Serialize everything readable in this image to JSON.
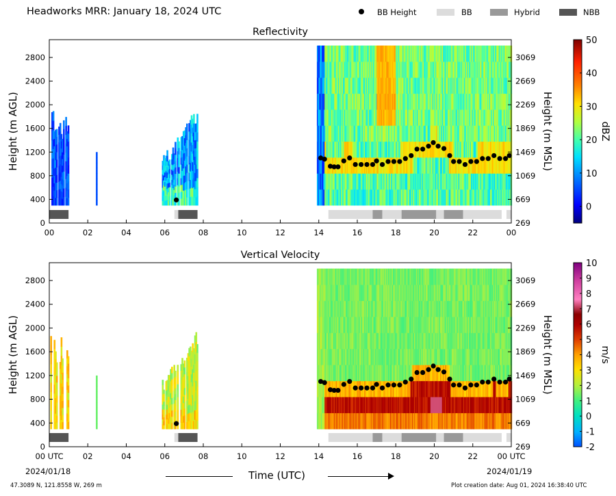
{
  "header": {
    "title": "Headworks MRR:  January 18, 2024 UTC",
    "legend": [
      {
        "label": "BB Height",
        "icon": "black-dot-icon",
        "color": "#000000"
      },
      {
        "label": "BB",
        "icon": "light-gray-swatch-icon",
        "color": "#dcdcdc"
      },
      {
        "label": "Hybrid",
        "icon": "mid-gray-swatch-icon",
        "color": "#999999"
      },
      {
        "label": "NBB",
        "icon": "dark-gray-swatch-icon",
        "color": "#555555"
      }
    ]
  },
  "footer": {
    "location": "47.3089 N, 121.8558 W, 269 m",
    "creation": "Plot creation date: Aug 01, 2024 16:38:40 UTC",
    "date_left": "2024/01/18",
    "date_right": "2024/01/19",
    "xlabel": "Time (UTC)"
  },
  "chart_data": [
    {
      "type": "heatmap",
      "title": "Reflectivity",
      "xlabel": "",
      "ylabel": "Height (m AGL)",
      "ylabel_right": "Height (m MSL)",
      "x_ticks": [
        "00",
        "02",
        "04",
        "06",
        "08",
        "10",
        "12",
        "14",
        "16",
        "18",
        "20",
        "22",
        "00"
      ],
      "xlim": [
        0,
        24
      ],
      "ylim": [
        0,
        3100
      ],
      "y_ticks": [
        0,
        400,
        800,
        1200,
        1600,
        2000,
        2400,
        2800
      ],
      "y_ticks_right": [
        269,
        669,
        1069,
        1469,
        1869,
        2269,
        2669,
        3069
      ],
      "colorbar": {
        "label": "dBZ",
        "min": -5,
        "max": 50,
        "ticks": [
          0,
          10,
          20,
          30,
          40,
          50
        ],
        "colors": [
          "#00007f",
          "#0000ff",
          "#0080ff",
          "#00e0ff",
          "#40ffb0",
          "#b0ff40",
          "#ffe000",
          "#ff8000",
          "#ff2000",
          "#7f0000"
        ]
      },
      "bb_height": {
        "time": [
          6.6,
          14.1,
          14.3,
          14.6,
          14.8,
          15.0,
          15.3,
          15.6,
          15.9,
          16.2,
          16.5,
          16.8,
          17.0,
          17.3,
          17.6,
          17.9,
          18.2,
          18.5,
          18.8,
          19.1,
          19.4,
          19.7,
          19.95,
          20.2,
          20.5,
          20.8,
          21.0,
          21.3,
          21.6,
          21.9,
          22.2,
          22.5,
          22.8,
          23.1,
          23.4,
          23.7,
          23.9
        ],
        "height": [
          390,
          1100,
          1080,
          960,
          950,
          950,
          1050,
          1100,
          990,
          990,
          990,
          990,
          1050,
          990,
          1040,
          1040,
          1040,
          1090,
          1140,
          1250,
          1250,
          1300,
          1360,
          1300,
          1260,
          1140,
          1040,
          1040,
          990,
          1040,
          1040,
          1090,
          1090,
          1140,
          1090,
          1090,
          1140
        ]
      },
      "precip_type_bar": [
        {
          "start": 0.0,
          "end": 1.0,
          "type": "NBB"
        },
        {
          "start": 6.5,
          "end": 6.7,
          "type": "BB"
        },
        {
          "start": 6.7,
          "end": 7.7,
          "type": "NBB"
        },
        {
          "start": 14.5,
          "end": 16.8,
          "type": "BB"
        },
        {
          "start": 16.8,
          "end": 17.3,
          "type": "Hybrid"
        },
        {
          "start": 17.3,
          "end": 18.3,
          "type": "BB"
        },
        {
          "start": 18.3,
          "end": 20.1,
          "type": "Hybrid"
        },
        {
          "start": 20.1,
          "end": 20.5,
          "type": "BB"
        },
        {
          "start": 20.5,
          "end": 21.5,
          "type": "Hybrid"
        },
        {
          "start": 21.5,
          "end": 23.5,
          "type": "BB"
        },
        {
          "start": 23.75,
          "end": 24.0,
          "type": "BB"
        }
      ]
    },
    {
      "type": "heatmap",
      "title": "Vertical Velocity",
      "xlabel": "Time (UTC)",
      "ylabel": "Height (m AGL)",
      "ylabel_right": "Height (m MSL)",
      "x_ticks": [
        "00 UTC",
        "02",
        "04",
        "06",
        "08",
        "10",
        "12",
        "14",
        "16",
        "18",
        "20",
        "22",
        "00 UTC"
      ],
      "xlim": [
        0,
        24
      ],
      "ylim": [
        0,
        3100
      ],
      "y_ticks": [
        0,
        400,
        800,
        1200,
        1600,
        2000,
        2400,
        2800
      ],
      "y_ticks_right": [
        269,
        669,
        1069,
        1469,
        1869,
        2269,
        2669,
        3069
      ],
      "colorbar": {
        "label": "m/s",
        "min": -2,
        "max": 10,
        "ticks": [
          -2,
          -1,
          0,
          1,
          2,
          3,
          4,
          5,
          6,
          7,
          8,
          9,
          10
        ],
        "colors": [
          "#0050ff",
          "#00b0ff",
          "#00e0c0",
          "#40f080",
          "#b0f040",
          "#ffe000",
          "#ffa000",
          "#e04000",
          "#b00000",
          "#8b0000",
          "#ff80c0",
          "#d040a0",
          "#800080"
        ]
      },
      "bb_height": {
        "time": [
          6.6,
          14.1,
          14.3,
          14.6,
          14.8,
          15.0,
          15.3,
          15.6,
          15.9,
          16.2,
          16.5,
          16.8,
          17.0,
          17.3,
          17.6,
          17.9,
          18.2,
          18.5,
          18.8,
          19.1,
          19.4,
          19.7,
          19.95,
          20.2,
          20.5,
          20.8,
          21.0,
          21.3,
          21.6,
          21.9,
          22.2,
          22.5,
          22.8,
          23.1,
          23.4,
          23.7,
          23.9
        ],
        "height": [
          390,
          1100,
          1080,
          960,
          950,
          950,
          1050,
          1100,
          990,
          990,
          990,
          990,
          1050,
          990,
          1040,
          1040,
          1040,
          1090,
          1140,
          1250,
          1250,
          1300,
          1360,
          1300,
          1260,
          1140,
          1040,
          1040,
          990,
          1040,
          1040,
          1090,
          1090,
          1140,
          1090,
          1090,
          1140
        ]
      },
      "precip_type_bar": [
        {
          "start": 0.0,
          "end": 1.0,
          "type": "NBB"
        },
        {
          "start": 6.5,
          "end": 6.7,
          "type": "BB"
        },
        {
          "start": 6.7,
          "end": 7.7,
          "type": "NBB"
        },
        {
          "start": 14.5,
          "end": 16.8,
          "type": "BB"
        },
        {
          "start": 16.8,
          "end": 17.3,
          "type": "Hybrid"
        },
        {
          "start": 17.3,
          "end": 18.3,
          "type": "BB"
        },
        {
          "start": 18.3,
          "end": 20.1,
          "type": "Hybrid"
        },
        {
          "start": 20.1,
          "end": 20.5,
          "type": "BB"
        },
        {
          "start": 20.5,
          "end": 21.5,
          "type": "Hybrid"
        },
        {
          "start": 21.5,
          "end": 23.5,
          "type": "BB"
        },
        {
          "start": 23.75,
          "end": 24.0,
          "type": "BB"
        }
      ]
    }
  ]
}
